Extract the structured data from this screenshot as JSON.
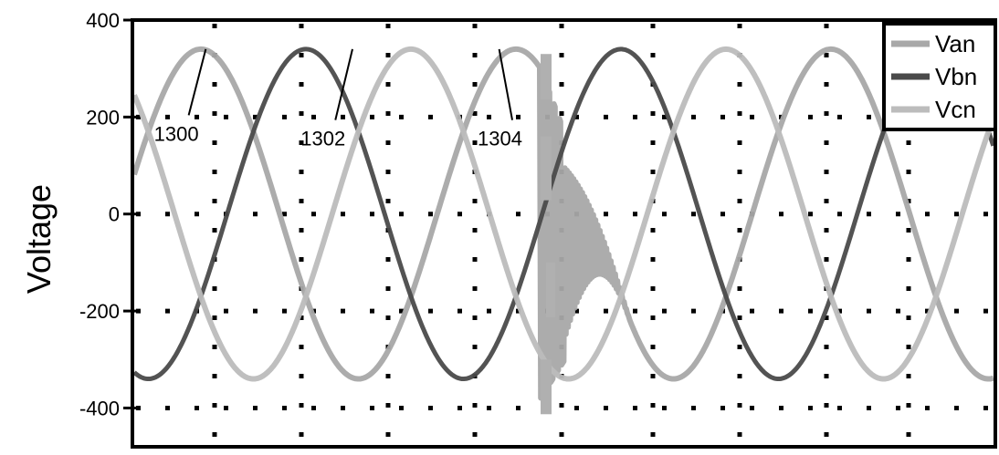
{
  "chart_data": {
    "type": "line",
    "title": "",
    "xlabel": "",
    "ylabel": "Voltage",
    "ylim": [
      -480,
      400
    ],
    "yticks": [
      400,
      200,
      0,
      -200,
      -400
    ],
    "ytick_labels": [
      "400",
      "200",
      "0",
      "-200",
      "-400"
    ],
    "grid": true,
    "legend_position": "top-right",
    "x_domain": [
      0,
      1
    ],
    "series": [
      {
        "name": "Van",
        "color": "#a8a8a8",
        "amplitude": 340,
        "phase_deg": 0,
        "disturbance": true
      },
      {
        "name": "Vbn",
        "color": "#4a4a4a",
        "amplitude": 340,
        "phase_deg": -120,
        "disturbance": false
      },
      {
        "name": "Vcn",
        "color": "#bcbcbc",
        "amplitude": 340,
        "phase_deg": 120,
        "disturbance": false
      }
    ],
    "annotations": [
      {
        "text": "1300",
        "target_x": 0.085,
        "target_y": 340,
        "label_x": 0.025,
        "label_y": 170
      },
      {
        "text": "1302",
        "target_x": 0.255,
        "target_y": 340,
        "label_x": 0.195,
        "label_y": 160
      },
      {
        "text": "1304",
        "target_x": 0.425,
        "target_y": 340,
        "label_x": 0.4,
        "label_y": 160
      }
    ]
  }
}
